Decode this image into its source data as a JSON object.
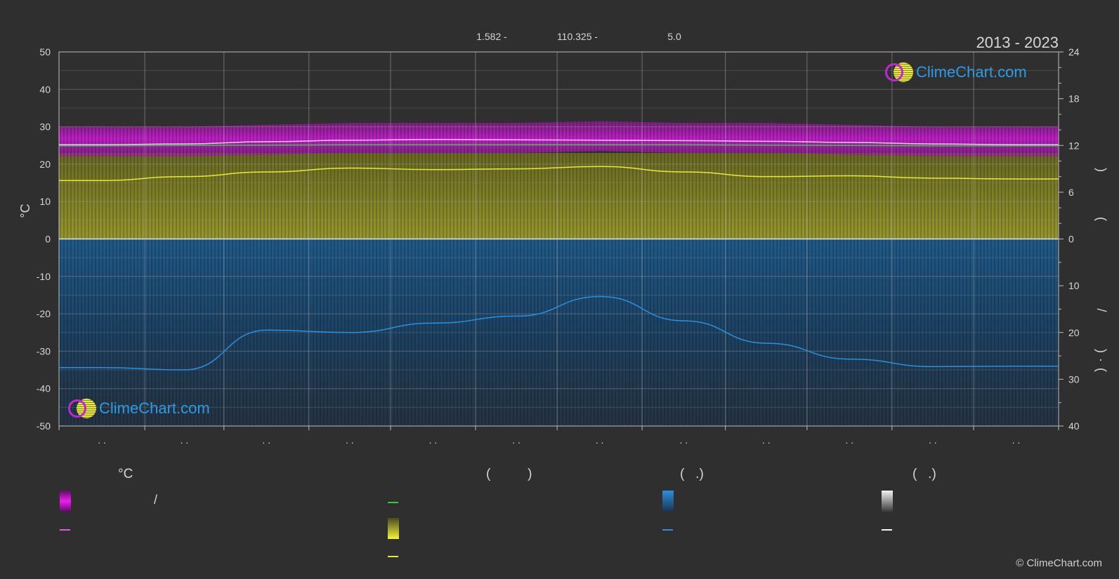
{
  "header": {
    "year_range": "2013 - 2023",
    "values": [
      "1.582 -",
      "110.325 -",
      "5.0"
    ]
  },
  "branding": {
    "logo_text": "ClimeChart.com",
    "copyright": "© ClimeChart.com"
  },
  "chart_data": {
    "type": "area",
    "y_left": {
      "label": "°C",
      "range": [
        -50,
        50
      ],
      "ticks": [
        "50",
        "40",
        "30",
        "20",
        "10",
        "0",
        "-10",
        "-20",
        "-30",
        "-40",
        "-50"
      ]
    },
    "y_right_top": {
      "range": [
        0,
        24
      ],
      "ticks": [
        "24",
        "18",
        "12",
        "6",
        "0"
      ],
      "label_fragments": [
        ")",
        "("
      ]
    },
    "y_right_bottom": {
      "range": [
        0,
        40
      ],
      "ticks": [
        "10",
        "20",
        "30",
        "40"
      ],
      "label_fragments": [
        "/",
        ")",
        "·",
        "("
      ]
    },
    "month_labels": [
      ". .",
      ". .",
      ". .",
      ". .",
      ". .",
      ". .",
      ". .",
      ". .",
      ". .",
      ". .",
      ". .",
      ". ."
    ],
    "grid": true,
    "x_months": [
      0.5,
      1.5,
      2.5,
      3.5,
      4.5,
      5.5,
      6.5,
      7.5,
      8.5,
      9.5,
      10.5,
      11.5
    ],
    "series": [
      {
        "key": "temp_band",
        "values_high": [
          30,
          30,
          30.5,
          31,
          31,
          31,
          31.5,
          31,
          31,
          30.5,
          30,
          30
        ],
        "values_low": [
          22,
          22,
          22.5,
          23,
          23,
          23,
          23.5,
          23,
          23,
          22.5,
          22,
          22
        ],
        "color": "#c019c8"
      },
      {
        "key": "temp_mean_white",
        "values": [
          25.2,
          25.4,
          26.0,
          26.4,
          26.6,
          26.5,
          26.4,
          26.3,
          26.1,
          25.8,
          25.4,
          25.2
        ],
        "color": "#f0c6f0"
      },
      {
        "key": "temp_green",
        "values": [
          24.9,
          25.0,
          25.1,
          25.2,
          25.2,
          25.2,
          25.2,
          25.2,
          25.1,
          25.0,
          24.9,
          24.9
        ],
        "color": "#33cc33"
      },
      {
        "key": "sunshine_hours",
        "values": [
          7.5,
          8.0,
          8.6,
          9.1,
          8.9,
          9.0,
          9.3,
          8.6,
          8.0,
          8.1,
          7.8,
          7.7
        ],
        "color": "#e8e83a"
      },
      {
        "key": "precipitation_mm",
        "values": [
          27.5,
          28.0,
          19.5,
          20.0,
          18.0,
          16.5,
          12.3,
          17.5,
          22.3,
          25.7,
          27.3,
          27.2
        ],
        "color": "#2b8fe0"
      }
    ]
  },
  "legend": {
    "groups": [
      {
        "heading": "°C",
        "items": [
          {
            "icon": "magenta-gradient-swatch",
            "label": "/"
          },
          {
            "icon": "magenta-line",
            "label": ""
          }
        ]
      },
      {
        "heading": "(          )",
        "items": [
          {
            "icon": "green-line",
            "label": ""
          },
          {
            "icon": "yellow-gradient-swatch",
            "label": ""
          },
          {
            "icon": "yellow-line",
            "label": ""
          }
        ]
      },
      {
        "heading": "(   .)",
        "items": [
          {
            "icon": "blue-gradient-swatch",
            "label": ""
          },
          {
            "icon": "blue-line",
            "label": ""
          }
        ]
      },
      {
        "heading": "(   .)",
        "items": [
          {
            "icon": "white-gradient-swatch",
            "label": ""
          },
          {
            "icon": "white-line",
            "label": ""
          }
        ]
      }
    ]
  },
  "colors": {
    "background": "#2f2f2f",
    "grid": "#8a8a8a",
    "magenta": "#d41bd8",
    "green": "#33cc33",
    "yellow": "#e8e83a",
    "blue": "#2b8fe0",
    "white": "#f2f2f2",
    "brand": "#2b9be3"
  }
}
